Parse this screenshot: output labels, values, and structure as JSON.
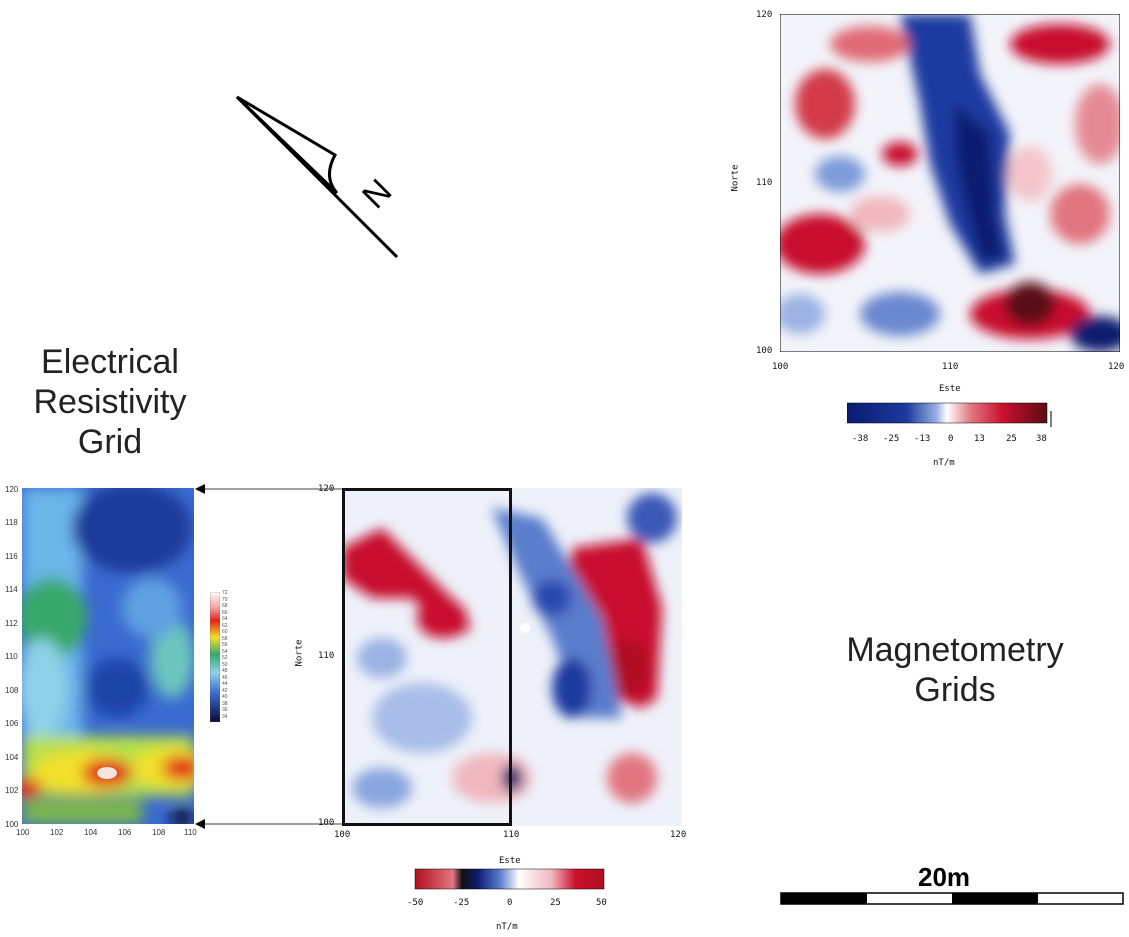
{
  "titles": {
    "ert": [
      "Electrical",
      "Resistivity",
      "Grid"
    ],
    "mag": [
      "Magnetometry",
      "Grids"
    ]
  },
  "north_label": "N",
  "scale_bar": {
    "label": "20m"
  },
  "ert_grid": {
    "y_ticks": [
      "120",
      "118",
      "116",
      "114",
      "112",
      "110",
      "108",
      "106",
      "104",
      "102",
      "100"
    ],
    "x_ticks": [
      "100",
      "102",
      "104",
      "106",
      "108",
      "110"
    ],
    "legend_levels": [
      "72",
      "70",
      "68",
      "66",
      "64",
      "62",
      "60",
      "58",
      "56",
      "54",
      "52",
      "50",
      "48",
      "46",
      "44",
      "42",
      "40",
      "38",
      "36",
      "34"
    ]
  },
  "mag_top": {
    "y_label": "Norte",
    "x_label": "Este",
    "y_ticks": [
      "120",
      "110",
      "100"
    ],
    "x_ticks": [
      "100",
      "110",
      "120"
    ],
    "legend_ticks": [
      "-38",
      "-25",
      "-13",
      "0",
      "13",
      "25",
      "38"
    ],
    "legend_unit": "nT/m"
  },
  "mag_bottom": {
    "y_label": "Norte",
    "x_label": "Este",
    "y_ticks": [
      "120",
      "110",
      "100"
    ],
    "x_ticks": [
      "100",
      "110",
      "120"
    ],
    "legend_ticks": [
      "-50",
      "-25",
      "0",
      "25",
      "50"
    ],
    "legend_unit": "nT/m"
  },
  "colors": {
    "mag_negative": "#0b1a6e",
    "mag_positive": "#c8102e",
    "mag_strong_positive": "#5a0d12",
    "ert_low": "#0a2a8a",
    "ert_high": "#ffffff"
  }
}
